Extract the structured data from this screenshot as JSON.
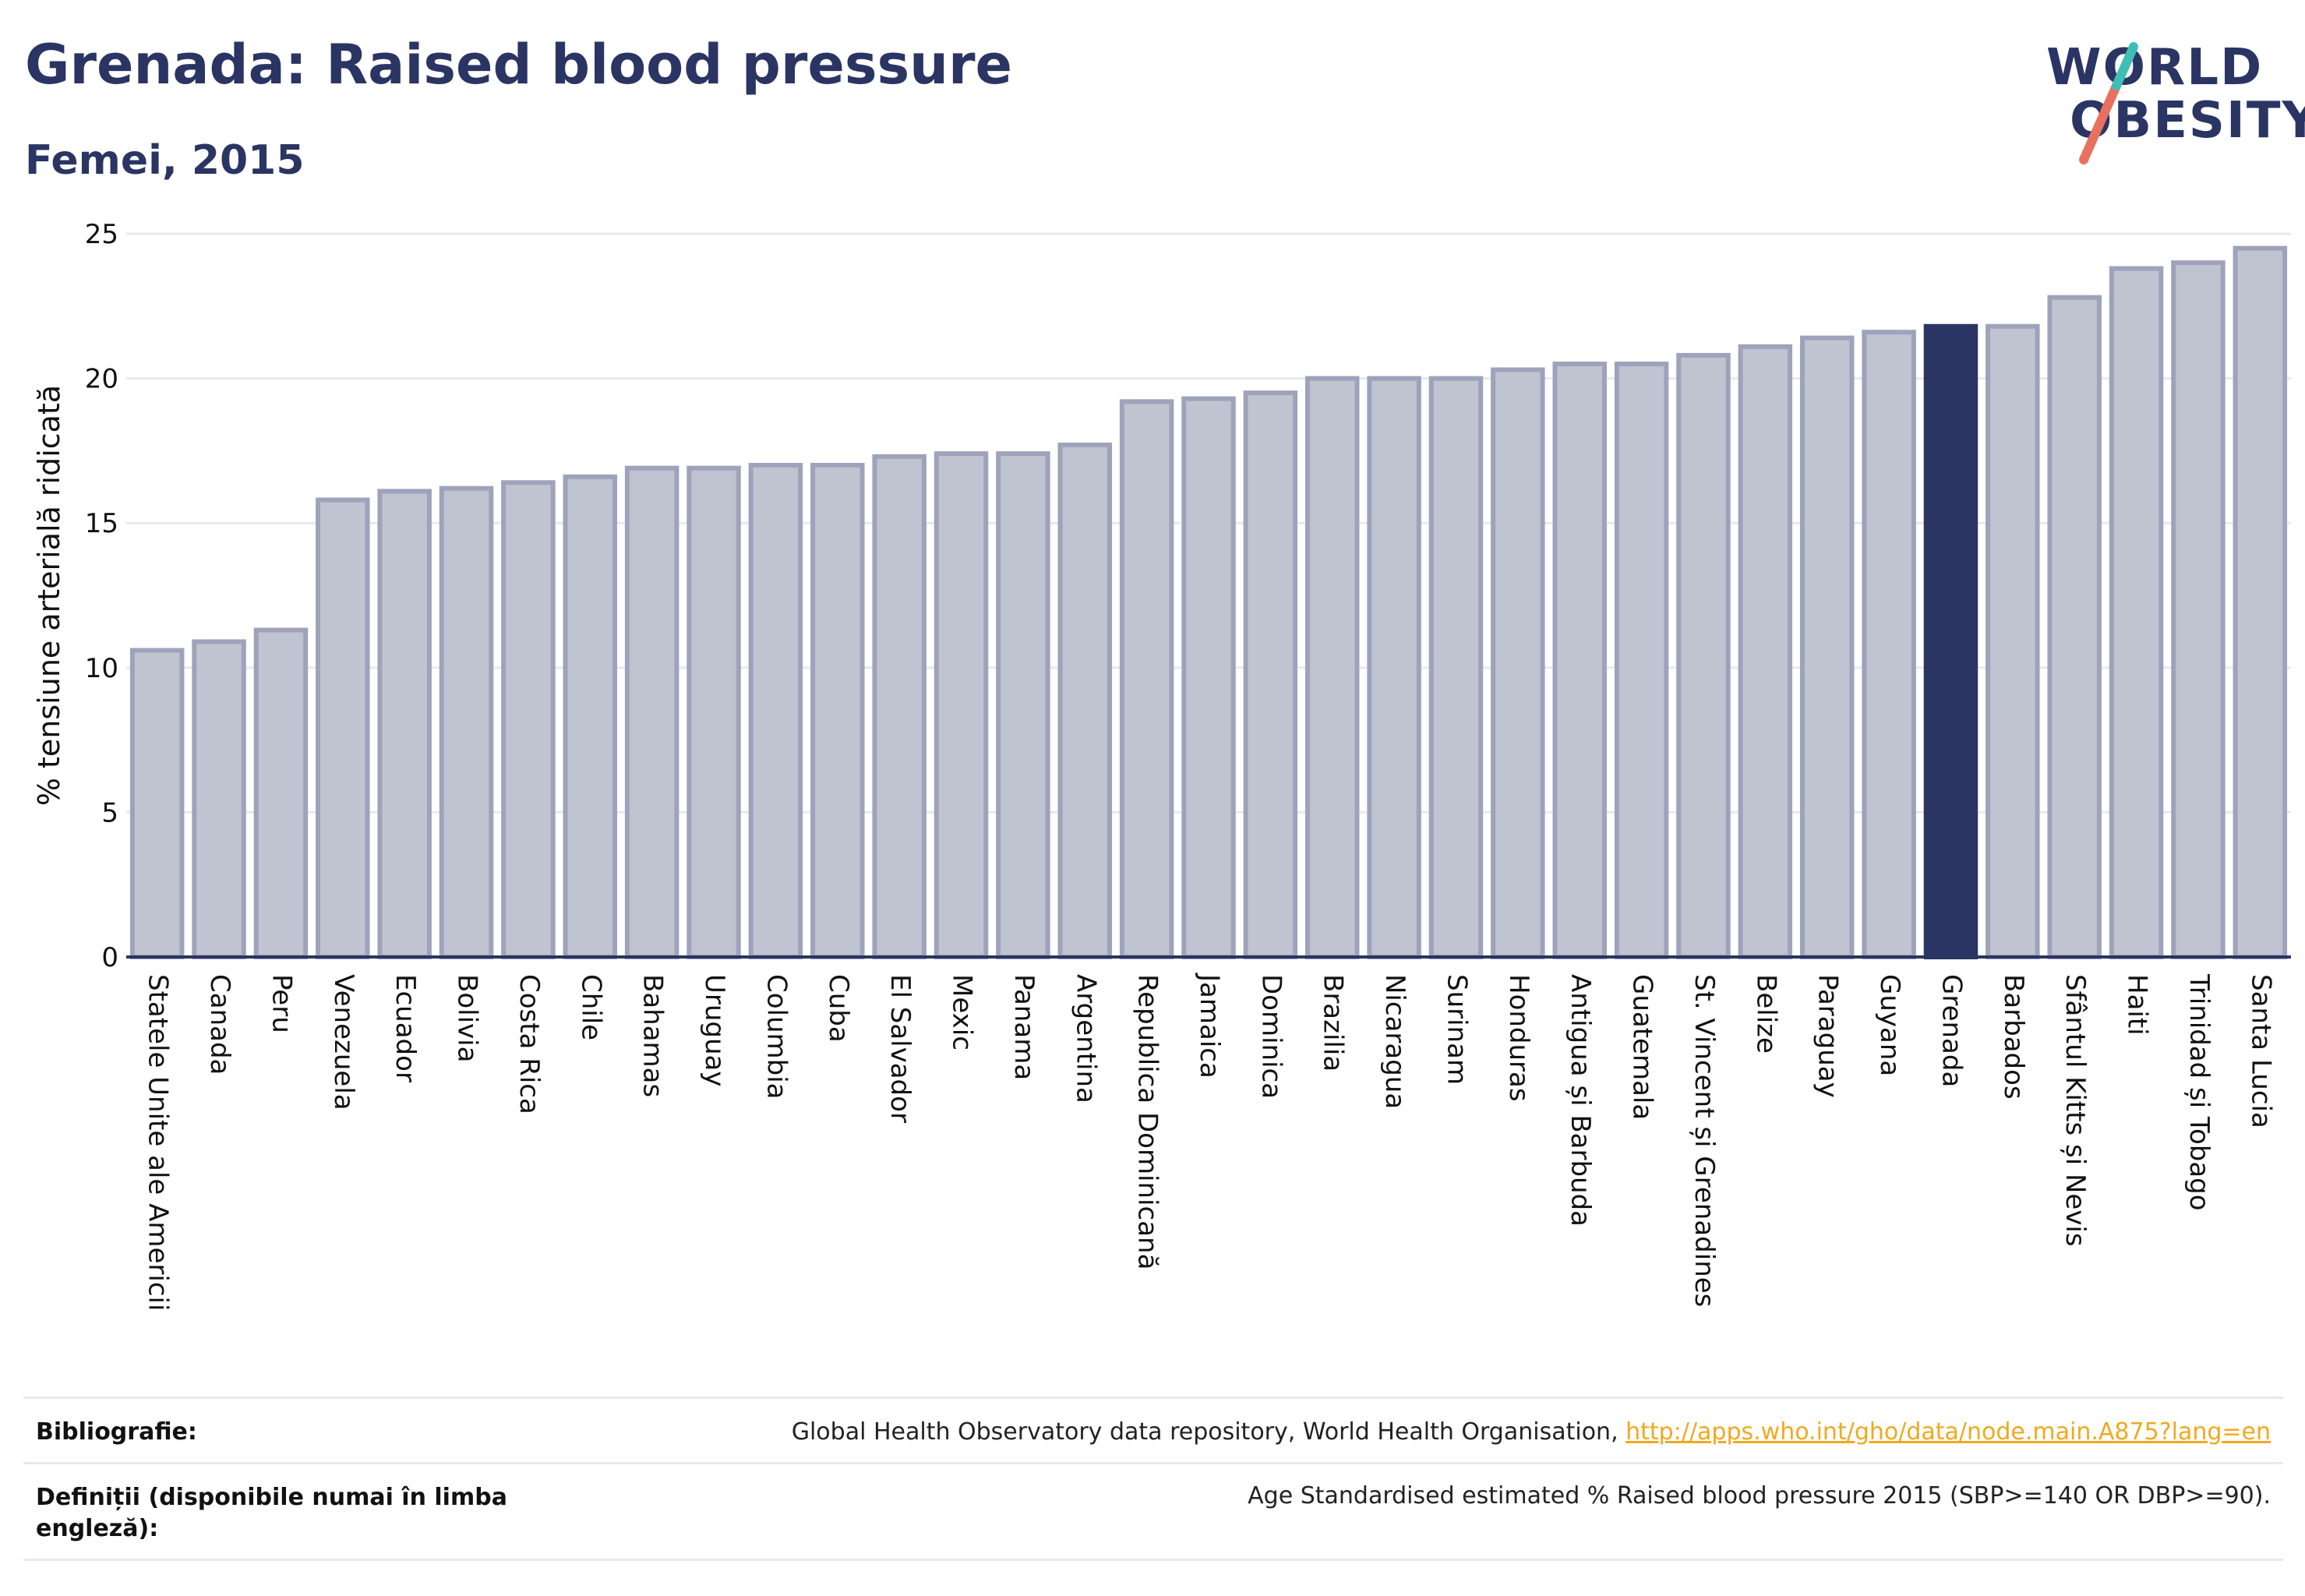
{
  "title": "Grenada: Raised blood pressure",
  "subtitle": "Femei, 2015",
  "logo": {
    "line1": "WORLD",
    "line2": "OBESITY",
    "name": "world-obesity-logo"
  },
  "colors": {
    "bar": "#c0c3d0",
    "bar_border": "#9ea3bb",
    "highlight": "#2b3563",
    "text": "#2b3563",
    "link": "#f0a91f",
    "grid": "#e6e9f0"
  },
  "chart_data": {
    "type": "bar",
    "ylabel": "% tensiune arterială ridicată",
    "xlabel": "",
    "ylim": [
      0,
      25
    ],
    "yticks": [
      0,
      5,
      10,
      15,
      20,
      25
    ],
    "highlight": "Grenada",
    "grid": true,
    "categories": [
      "Statele Unite ale Americii",
      "Canada",
      "Peru",
      "Venezuela",
      "Ecuador",
      "Bolivia",
      "Costa Rica",
      "Chile",
      "Bahamas",
      "Uruguay",
      "Columbia",
      "Cuba",
      "El Salvador",
      "Mexic",
      "Panama",
      "Argentina",
      "Republica Dominicană",
      "Jamaica",
      "Dominica",
      "Brazilia",
      "Nicaragua",
      "Surinam",
      "Honduras",
      "Antigua și Barbuda",
      "Guatemala",
      "St. Vincent și Grenadines",
      "Belize",
      "Paraguay",
      "Guyana",
      "Grenada",
      "Barbados",
      "Sfântul Kitts și Nevis",
      "Haiti",
      "Trinidad și Tobago",
      "Santa Lucia"
    ],
    "values": [
      10.6,
      10.9,
      11.3,
      15.8,
      16.1,
      16.2,
      16.4,
      16.6,
      16.9,
      16.9,
      17.0,
      17.0,
      17.3,
      17.4,
      17.4,
      17.7,
      19.2,
      19.3,
      19.5,
      20.0,
      20.0,
      20.0,
      20.3,
      20.5,
      20.5,
      20.8,
      21.1,
      21.4,
      21.6,
      21.8,
      21.8,
      22.8,
      23.8,
      24.0,
      24.5
    ]
  },
  "footer": {
    "bibliography_label": "Bibliografie:",
    "bibliography_text": "Global Health Observatory data repository, World Health Organisation, ",
    "bibliography_link": "http://apps.who.int/gho/data/node.main.A875?lang=en",
    "definitions_label": "Definiții (disponibile numai în limba engleză):",
    "definitions_text": "Age Standardised estimated % Raised blood pressure 2015 (SBP>=140 OR DBP>=90)."
  }
}
